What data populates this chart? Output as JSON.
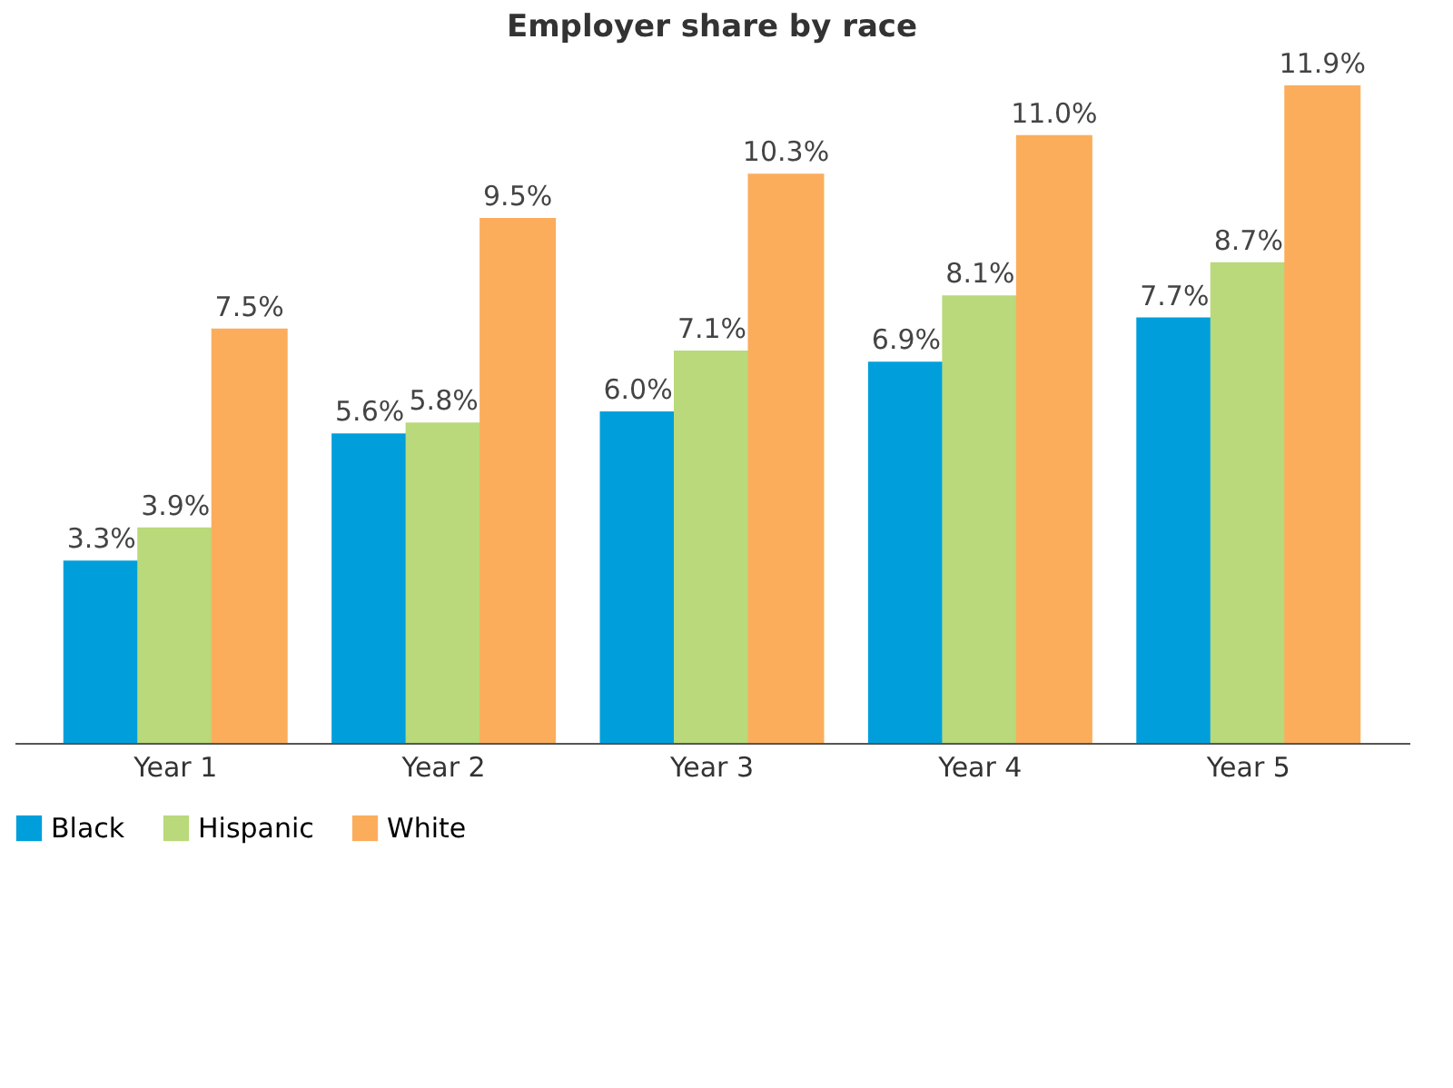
{
  "chart_data": {
    "type": "bar",
    "title": "Employer share by race",
    "categories": [
      "Year 1",
      "Year 2",
      "Year 3",
      "Year 4",
      "Year 5"
    ],
    "series": [
      {
        "name": "Black",
        "color": "#009fdb",
        "values": [
          3.3,
          5.6,
          6.0,
          6.9,
          7.7
        ],
        "value_labels": [
          "3.3%",
          "5.6%",
          "6.0%",
          "6.9%",
          "7.7%"
        ]
      },
      {
        "name": "Hispanic",
        "color": "#b9d97a",
        "values": [
          3.9,
          5.8,
          7.1,
          8.1,
          8.7
        ],
        "value_labels": [
          "3.9%",
          "5.8%",
          "7.1%",
          "8.1%",
          "8.7%"
        ]
      },
      {
        "name": "White",
        "color": "#fbad5c",
        "values": [
          7.5,
          9.5,
          10.3,
          11.0,
          11.9
        ],
        "value_labels": [
          "7.5%",
          "9.5%",
          "10.3%",
          "11.0%",
          "11.9%"
        ]
      }
    ],
    "legend": "bottom left",
    "grid": false
  }
}
